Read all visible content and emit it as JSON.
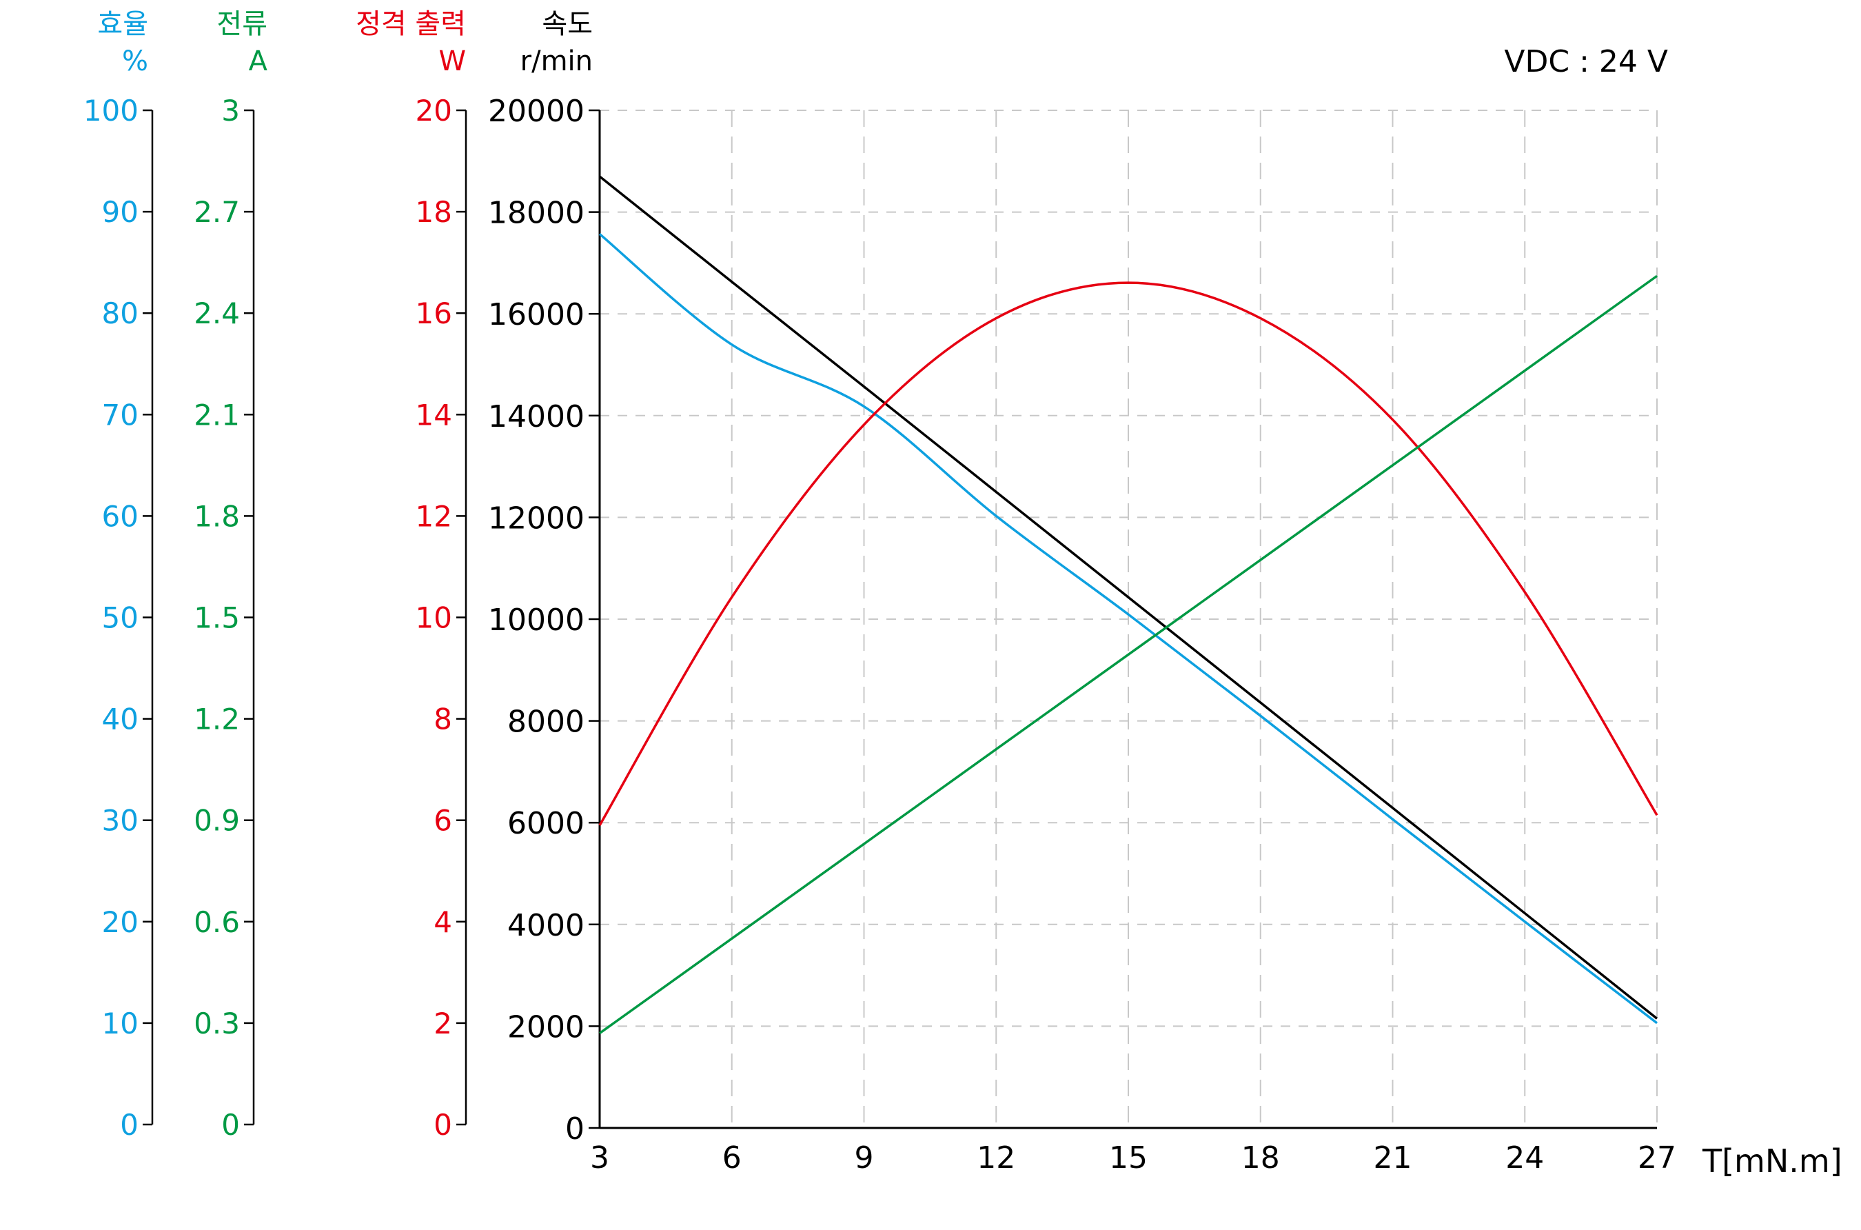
{
  "header": {
    "efficiency": {
      "title": "효율",
      "unit": "%",
      "color": "#0ea0e0"
    },
    "current": {
      "title": "전류",
      "unit": "A",
      "color": "#009944"
    },
    "power": {
      "title": "정격 출력",
      "unit": "W",
      "color": "#e60012"
    },
    "speed": {
      "title": "속도",
      "unit": "r/min",
      "color": "#000000"
    },
    "voltage_note": "VDC : 24 V"
  },
  "chart_data": {
    "type": "line",
    "title": "",
    "annotation": "VDC : 24 V",
    "xlabel": "T[mN.m]",
    "x": [
      3,
      6,
      9,
      12,
      15,
      18,
      21,
      24,
      27
    ],
    "xlim": [
      3,
      27
    ],
    "x_ticks": [
      "3",
      "6",
      "9",
      "12",
      "15",
      "18",
      "21",
      "24",
      "27"
    ],
    "grid": true,
    "axes": [
      {
        "name": "효율",
        "unit": "%",
        "ylim": [
          0,
          100
        ],
        "ticks": [
          "0",
          "10",
          "20",
          "30",
          "40",
          "50",
          "60",
          "70",
          "80",
          "90",
          "100"
        ],
        "color": "#0ea0e0"
      },
      {
        "name": "전류",
        "unit": "A",
        "ylim": [
          0,
          3
        ],
        "ticks": [
          "0",
          "0.3",
          "0.6",
          "0.9",
          "1.2",
          "1.5",
          "1.8",
          "2.1",
          "2.4",
          "2.7",
          "3"
        ],
        "color": "#009944"
      },
      {
        "name": "정격 출력",
        "unit": "W",
        "ylim": [
          0,
          20
        ],
        "ticks": [
          "0",
          "2",
          "4",
          "6",
          "8",
          "10",
          "12",
          "14",
          "16",
          "18",
          "20"
        ],
        "color": "#e60012"
      },
      {
        "name": "속도",
        "unit": "r/min",
        "ylim": [
          0,
          20000
        ],
        "ticks": [
          "0",
          "2000",
          "4000",
          "6000",
          "8000",
          "10000",
          "12000",
          "14000",
          "16000",
          "18000",
          "20000"
        ],
        "color": "#000000"
      }
    ],
    "series": [
      {
        "name": "속도",
        "axis": "speed",
        "unit": "r/min",
        "color": "#000000",
        "values": [
          18700,
          16630,
          14570,
          12500,
          10430,
          8360,
          6290,
          4220,
          2150
        ]
      },
      {
        "name": "효율",
        "axis": "efficiency",
        "unit": "%",
        "color": "#0ea0e0",
        "values": [
          87.8,
          76.9,
          70.8,
          60.0,
          50.3,
          40.3,
          30.1,
          20.0,
          10.0
        ]
      },
      {
        "name": "정격 출력",
        "axis": "power",
        "unit": "W",
        "color": "#e60012",
        "values": [
          5.9,
          10.4,
          13.8,
          15.9,
          16.6,
          15.9,
          13.9,
          10.5,
          6.1
        ]
      },
      {
        "name": "전류",
        "axis": "current",
        "unit": "A",
        "color": "#009944",
        "values": [
          0.27,
          0.55,
          0.83,
          1.11,
          1.39,
          1.67,
          1.95,
          2.23,
          2.51
        ]
      }
    ]
  }
}
